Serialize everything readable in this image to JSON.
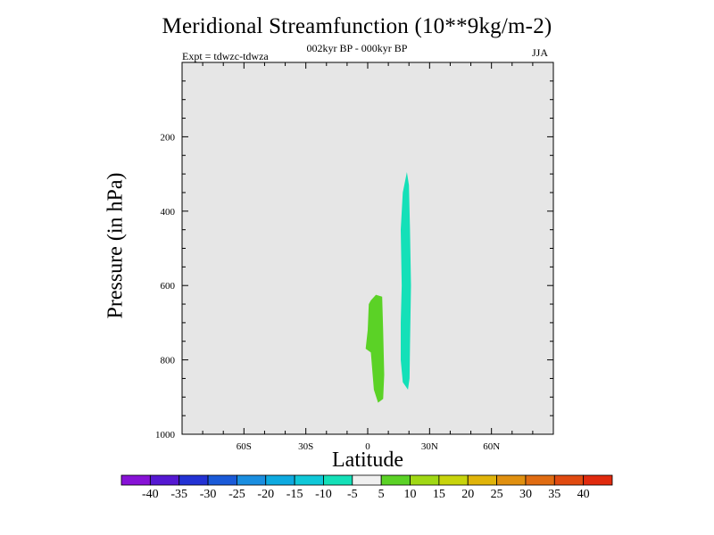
{
  "chart_data": {
    "type": "contour",
    "title": "Meridional Streamfunction (10**9kg/m-2)",
    "subtitle": "002kyr BP - 000kyr BP",
    "experiment": "Expt = tdwzc-tdwza",
    "season": "JJA",
    "xlabel": "Latitude",
    "ylabel": "Pressure (in hPa)",
    "xlim": [
      -90,
      90
    ],
    "ylim": [
      1000,
      0
    ],
    "x_ticks": [
      {
        "value": -60,
        "label": "60S"
      },
      {
        "value": -30,
        "label": "30S"
      },
      {
        "value": 0,
        "label": "0"
      },
      {
        "value": 30,
        "label": "30N"
      },
      {
        "value": 60,
        "label": "60N"
      }
    ],
    "y_ticks": [
      {
        "value": 200,
        "label": "200"
      },
      {
        "value": 400,
        "label": "400"
      },
      {
        "value": 600,
        "label": "600"
      },
      {
        "value": 800,
        "label": "800"
      },
      {
        "value": 1000,
        "label": "1000"
      }
    ],
    "background_color": "#e6e6e6",
    "regions": [
      {
        "name": "positive 5 to 10",
        "color": "#5bd226",
        "outline": [
          [
            1.5,
            640
          ],
          [
            4,
            625
          ],
          [
            7,
            630
          ],
          [
            7.5,
            720
          ],
          [
            8,
            840
          ],
          [
            7.5,
            905
          ],
          [
            5,
            915
          ],
          [
            3,
            880
          ],
          [
            1.5,
            780
          ],
          [
            -1,
            770
          ],
          [
            0,
            720
          ],
          [
            0.5,
            650
          ]
        ]
      },
      {
        "name": "negative -10 to -5",
        "color": "#14e0b8",
        "outline": [
          [
            19,
            295
          ],
          [
            20,
            330
          ],
          [
            20.5,
            450
          ],
          [
            21,
            600
          ],
          [
            20.5,
            760
          ],
          [
            20.3,
            850
          ],
          [
            19.5,
            880
          ],
          [
            17,
            860
          ],
          [
            16,
            800
          ],
          [
            16,
            700
          ],
          [
            16.5,
            600
          ],
          [
            16,
            450
          ],
          [
            17,
            350
          ]
        ]
      }
    ],
    "colorbar": {
      "labels": [
        "-40",
        "-35",
        "-30",
        "-25",
        "-20",
        "-15",
        "-10",
        "-5",
        "5",
        "10",
        "15",
        "20",
        "25",
        "30",
        "35",
        "40"
      ],
      "colors": [
        "#8712d6",
        "#5518d2",
        "#2332d4",
        "#1a5ad8",
        "#1a8ee0",
        "#0eaae0",
        "#10c8d8",
        "#14e0b8",
        "#f0f0f0",
        "#5bd226",
        "#a0d814",
        "#c8d40c",
        "#e0b40a",
        "#e09010",
        "#e06c12",
        "#e04a10",
        "#e02a0e"
      ]
    }
  }
}
